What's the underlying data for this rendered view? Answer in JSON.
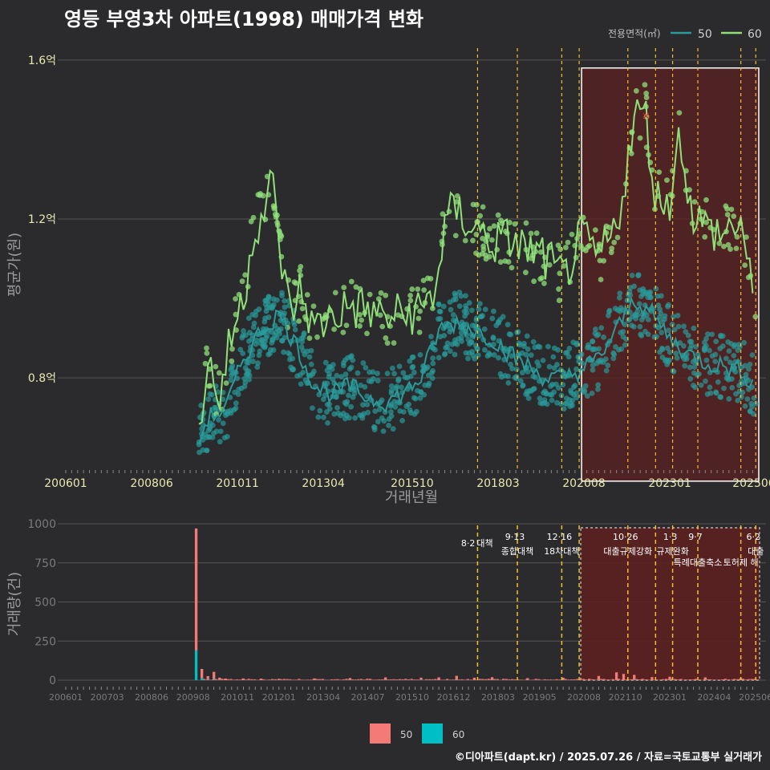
{
  "title": "영등 부영3차 아파트(1998) 매매가격 변화",
  "footer": "©디아파트(dapt.kr) / 2025.07.26 / 자료=국토교통부 실거래가",
  "colors": {
    "area50": "#2a9a9a",
    "area60": "#90e07a",
    "bar50": "#f47a75",
    "bar60": "#00bfc4",
    "policy": "#f2c02a",
    "highlight": "#5c2020"
  },
  "legend_top": {
    "title": "전용면적(㎡)",
    "items": [
      "50",
      "60"
    ]
  },
  "legend_bottom": {
    "items": [
      "50",
      "60"
    ]
  },
  "chart_data": [
    {
      "type": "scatter",
      "xlabel": "거래년월",
      "ylabel": "평균가(원)",
      "x_ticks": [
        "200601",
        "200806",
        "201011",
        "201304",
        "201510",
        "201803",
        "202008",
        "202301",
        "202506"
      ],
      "y_ticks": [
        "0.8억",
        "1.2억",
        "1.6억"
      ],
      "ylim": [
        0.57,
        1.63
      ],
      "x_range": [
        "200601",
        "202507"
      ],
      "series": [
        {
          "name": "50",
          "values": [
            [
              2009.75,
              0.64
            ],
            [
              2010.0,
              0.7
            ],
            [
              2010.5,
              0.72
            ],
            [
              2011.0,
              0.85
            ],
            [
              2011.5,
              0.92
            ],
            [
              2012.0,
              0.96
            ],
            [
              2012.5,
              0.88
            ],
            [
              2013.0,
              0.78
            ],
            [
              2013.5,
              0.76
            ],
            [
              2014.0,
              0.78
            ],
            [
              2014.5,
              0.75
            ],
            [
              2015.0,
              0.74
            ],
            [
              2015.5,
              0.76
            ],
            [
              2016.0,
              0.8
            ],
            [
              2016.5,
              0.92
            ],
            [
              2017.0,
              0.94
            ],
            [
              2017.5,
              0.92
            ],
            [
              2018.0,
              0.9
            ],
            [
              2018.5,
              0.86
            ],
            [
              2019.0,
              0.83
            ],
            [
              2019.5,
              0.8
            ],
            [
              2020.0,
              0.8
            ],
            [
              2020.5,
              0.82
            ],
            [
              2021.0,
              0.85
            ],
            [
              2021.5,
              0.92
            ],
            [
              2022.0,
              1.0
            ],
            [
              2022.5,
              0.96
            ],
            [
              2023.0,
              0.9
            ],
            [
              2023.5,
              0.86
            ],
            [
              2024.0,
              0.84
            ],
            [
              2024.5,
              0.83
            ],
            [
              2025.0,
              0.82
            ],
            [
              2025.4,
              0.78
            ]
          ]
        },
        {
          "name": "60",
          "values": [
            [
              2009.75,
              0.66
            ],
            [
              2010.0,
              0.85
            ],
            [
              2010.3,
              0.74
            ],
            [
              2010.7,
              0.92
            ],
            [
              2011.0,
              1.0
            ],
            [
              2011.3,
              1.18
            ],
            [
              2011.6,
              1.22
            ],
            [
              2011.8,
              1.3
            ],
            [
              2012.0,
              1.14
            ],
            [
              2012.3,
              0.96
            ],
            [
              2012.6,
              1.02
            ],
            [
              2013.0,
              0.92
            ],
            [
              2013.5,
              0.96
            ],
            [
              2014.0,
              0.98
            ],
            [
              2014.5,
              0.97
            ],
            [
              2015.0,
              0.95
            ],
            [
              2015.5,
              0.96
            ],
            [
              2016.0,
              0.97
            ],
            [
              2016.4,
              1.02
            ],
            [
              2016.7,
              1.2
            ],
            [
              2017.0,
              1.22
            ],
            [
              2017.5,
              1.18
            ],
            [
              2018.0,
              1.14
            ],
            [
              2018.5,
              1.15
            ],
            [
              2019.0,
              1.12
            ],
            [
              2019.5,
              1.1
            ],
            [
              2020.0,
              1.05
            ],
            [
              2020.5,
              1.15
            ],
            [
              2021.0,
              1.1
            ],
            [
              2021.5,
              1.18
            ],
            [
              2021.8,
              1.34
            ],
            [
              2022.0,
              1.45
            ],
            [
              2022.3,
              1.48
            ],
            [
              2022.6,
              1.25
            ],
            [
              2023.0,
              1.25
            ],
            [
              2023.3,
              1.42
            ],
            [
              2023.6,
              1.22
            ],
            [
              2024.0,
              1.18
            ],
            [
              2024.5,
              1.16
            ],
            [
              2025.0,
              1.2
            ],
            [
              2025.4,
              0.95
            ]
          ]
        }
      ],
      "highlight": {
        "from": 2020.45,
        "to": 2025.55,
        "ymin": 0.54,
        "ymax": 1.58
      },
      "marker": {
        "x": 2022.33,
        "y": 1.46,
        "symbol": "×"
      }
    },
    {
      "type": "bar",
      "ylabel": "거래량(건)",
      "y_ticks": [
        "0",
        "250",
        "500",
        "750",
        "1000"
      ],
      "ylim": [
        0,
        1000
      ],
      "x_ticks": [
        "200601",
        "200703",
        "200806",
        "200908",
        "201011",
        "201201",
        "201304",
        "201407",
        "201510",
        "201612",
        "201803",
        "201905",
        "202008",
        "202110",
        "202301",
        "202404",
        "202506"
      ],
      "series": [
        {
          "name": "50",
          "values": [
            [
              2009.67,
              780
            ],
            [
              2009.83,
              60
            ],
            [
              2010.0,
              20
            ],
            [
              2010.17,
              45
            ],
            [
              2010.33,
              12
            ],
            [
              2010.5,
              10
            ],
            [
              2011.0,
              8
            ],
            [
              2011.5,
              10
            ],
            [
              2012.0,
              6
            ],
            [
              2013.0,
              8
            ],
            [
              2014.0,
              10
            ],
            [
              2015.0,
              14
            ],
            [
              2016.0,
              12
            ],
            [
              2016.5,
              18
            ],
            [
              2017.0,
              22
            ],
            [
              2017.5,
              16
            ],
            [
              2018.0,
              14
            ],
            [
              2019.0,
              10
            ],
            [
              2020.0,
              12
            ],
            [
              2021.0,
              22
            ],
            [
              2021.5,
              50
            ],
            [
              2021.7,
              40
            ],
            [
              2022.0,
              28
            ],
            [
              2022.5,
              20
            ],
            [
              2023.0,
              18
            ],
            [
              2024.0,
              14
            ],
            [
              2025.0,
              10
            ]
          ]
        },
        {
          "name": "60",
          "values": [
            [
              2009.67,
              190
            ],
            [
              2009.83,
              12
            ],
            [
              2010.0,
              6
            ],
            [
              2010.17,
              8
            ],
            [
              2010.33,
              4
            ],
            [
              2011.0,
              3
            ],
            [
              2012.0,
              3
            ],
            [
              2013.0,
              3
            ],
            [
              2014.0,
              4
            ],
            [
              2015.0,
              4
            ],
            [
              2016.0,
              4
            ],
            [
              2017.0,
              6
            ],
            [
              2018.0,
              5
            ],
            [
              2019.0,
              3
            ],
            [
              2020.0,
              4
            ],
            [
              2021.0,
              5
            ],
            [
              2022.0,
              6
            ],
            [
              2023.0,
              4
            ],
            [
              2024.0,
              4
            ],
            [
              2025.0,
              3
            ]
          ]
        }
      ],
      "highlight": {
        "from": 2020.45,
        "to": 2025.55
      }
    }
  ],
  "policies": [
    {
      "x": 2017.59,
      "date": "8·2",
      "name": "대책"
    },
    {
      "x": 2018.71,
      "date": "9·13",
      "name": "종합대책"
    },
    {
      "x": 2019.96,
      "date": "12·16",
      "name": "18차대책"
    },
    {
      "x": 2020.45,
      "date": "",
      "name": ""
    },
    {
      "x": 2021.82,
      "date": "10·26",
      "name": "대출규제강화"
    },
    {
      "x": 2022.6,
      "date": "",
      "name": ""
    },
    {
      "x": 2023.08,
      "date": "1·3",
      "name": "규제완화"
    },
    {
      "x": 2023.79,
      "date": "9·7",
      "name": "특례대출축소"
    },
    {
      "x": 2025.0,
      "date": "",
      "name": "토허제 해"
    },
    {
      "x": 2025.42,
      "date": "6·2",
      "name": "대출"
    }
  ]
}
